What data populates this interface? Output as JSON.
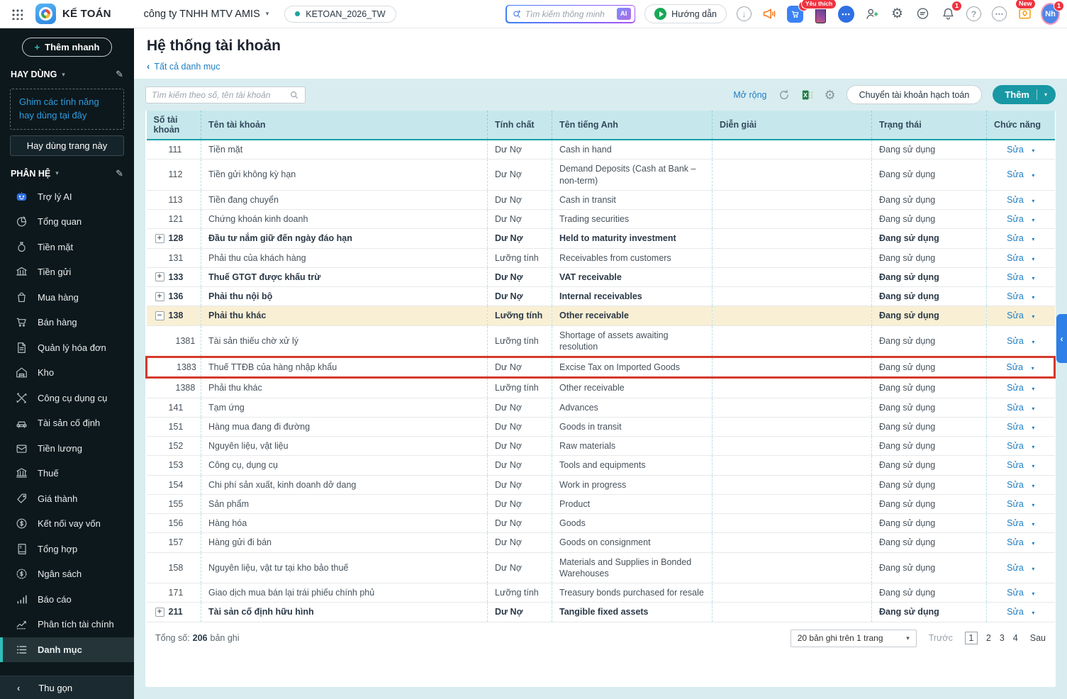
{
  "topbar": {
    "app_name": "KẾ TOÁN",
    "company": "công ty TNHH MTV AMIS",
    "workspace": "KETOAN_2026_TW",
    "search_placeholder": "Tìm kiếm thông minh",
    "ai_badge": "AI",
    "guide_label": "Hướng dẫn",
    "cart_badge": "1",
    "favorite_badge": "Yêu thích",
    "bell_badge": "1",
    "new_badge": "New",
    "avatar_initials": "Nh",
    "avatar_badge": "1"
  },
  "icons": {
    "caret_down": "▾",
    "chevron_left": "‹",
    "pencil": "✎",
    "gear": "⚙",
    "download_arrow": "↓",
    "question": "?",
    "ellipsis": "⋯",
    "chat_dots": "•••",
    "plus": "+"
  },
  "sidebar": {
    "quick_add_label": "Thêm nhanh",
    "frequent_header": "HAY DÙNG",
    "pin_hint": "Ghim các tính năng hay dùng tại đây",
    "frequent_page_button": "Hay dùng trang này",
    "modules_header": "PHÂN HỆ",
    "items": [
      {
        "label": "Trợ lý AI",
        "icon": "robot",
        "selected": false
      },
      {
        "label": "Tổng quan",
        "icon": "pie",
        "selected": false
      },
      {
        "label": "Tiền mặt",
        "icon": "moneybag",
        "selected": false
      },
      {
        "label": "Tiền gửi",
        "icon": "bank",
        "selected": false
      },
      {
        "label": "Mua hàng",
        "icon": "bag",
        "selected": false
      },
      {
        "label": "Bán hàng",
        "icon": "cart",
        "selected": false
      },
      {
        "label": "Quản lý hóa đơn",
        "icon": "invoice",
        "selected": false
      },
      {
        "label": "Kho",
        "icon": "warehouse",
        "selected": false
      },
      {
        "label": "Công cụ dụng cụ",
        "icon": "tools",
        "selected": false
      },
      {
        "label": "Tài sản cố định",
        "icon": "car",
        "selected": false
      },
      {
        "label": "Tiền lương",
        "icon": "salary",
        "selected": false
      },
      {
        "label": "Thuế",
        "icon": "temple",
        "selected": false
      },
      {
        "label": "Giá thành",
        "icon": "tag",
        "selected": false
      },
      {
        "label": "Kết nối vay vốn",
        "icon": "coin",
        "selected": false
      },
      {
        "label": "Tổng hợp",
        "icon": "ledger",
        "selected": false
      },
      {
        "label": "Ngân sách",
        "icon": "budget",
        "selected": false
      },
      {
        "label": "Báo cáo",
        "icon": "bars",
        "selected": false
      },
      {
        "label": "Phân tích tài chính",
        "icon": "trend",
        "selected": false
      },
      {
        "label": "Danh mục",
        "icon": "list",
        "selected": true
      }
    ],
    "collapse_label": "Thu gọn"
  },
  "page": {
    "title": "Hệ thống tài khoản",
    "breadcrumb": "Tất cả danh mục"
  },
  "toolbar": {
    "search_placeholder": "Tìm kiếm theo số, tên tài khoản",
    "expand_link": "Mở rộng",
    "transfer_button": "Chuyển tài khoản hạch toán",
    "add_button": "Thêm"
  },
  "table": {
    "columns": [
      "Số tài khoản",
      "Tên tài khoản",
      "Tính chất",
      "Tên tiếng Anh",
      "Diễn giải",
      "Trạng thái",
      "Chức năng"
    ],
    "edit_label": "Sửa",
    "rows": [
      {
        "expand": "",
        "account": "111",
        "name": "Tiền mặt",
        "nature": "Dư Nợ",
        "english": "Cash in hand",
        "description": "",
        "status": "Đang sử dụng",
        "bold": false,
        "highlight": false,
        "child": false,
        "annotated": false
      },
      {
        "expand": "",
        "account": "112",
        "name": "Tiền gửi không kỳ hạn",
        "nature": "Dư Nợ",
        "english": "Demand Deposits (Cash at Bank – non-term)",
        "description": "",
        "status": "Đang sử dụng",
        "bold": false,
        "highlight": false,
        "child": false,
        "annotated": false
      },
      {
        "expand": "",
        "account": "113",
        "name": "Tiền đang chuyển",
        "nature": "Dư Nợ",
        "english": "Cash in transit",
        "description": "",
        "status": "Đang sử dụng",
        "bold": false,
        "highlight": false,
        "child": false,
        "annotated": false
      },
      {
        "expand": "",
        "account": "121",
        "name": "Chứng khoán kinh doanh",
        "nature": "Dư Nợ",
        "english": "Trading securities",
        "description": "",
        "status": "Đang sử dụng",
        "bold": false,
        "highlight": false,
        "child": false,
        "annotated": false
      },
      {
        "expand": "plus",
        "account": "128",
        "name": "Đầu tư nắm giữ đến ngày đáo hạn",
        "nature": "Dư Nợ",
        "english": "Held to maturity investment",
        "description": "",
        "status": "Đang sử dụng",
        "bold": true,
        "highlight": false,
        "child": false,
        "annotated": false
      },
      {
        "expand": "",
        "account": "131",
        "name": "Phải thu của khách hàng",
        "nature": "Lưỡng tính",
        "english": "Receivables from customers",
        "description": "",
        "status": "Đang sử dụng",
        "bold": false,
        "highlight": false,
        "child": false,
        "annotated": false
      },
      {
        "expand": "plus",
        "account": "133",
        "name": "Thuế GTGT được khấu trừ",
        "nature": "Dư Nợ",
        "english": "VAT receivable",
        "description": "",
        "status": "Đang sử dụng",
        "bold": true,
        "highlight": false,
        "child": false,
        "annotated": false
      },
      {
        "expand": "plus",
        "account": "136",
        "name": "Phải thu nội bộ",
        "nature": "Dư Nợ",
        "english": "Internal receivables",
        "description": "",
        "status": "Đang sử dụng",
        "bold": true,
        "highlight": false,
        "child": false,
        "annotated": false
      },
      {
        "expand": "minus",
        "account": "138",
        "name": "Phải thu khác",
        "nature": "Lưỡng tính",
        "english": "Other receivable",
        "description": "",
        "status": "Đang sử dụng",
        "bold": true,
        "highlight": true,
        "child": false,
        "annotated": false
      },
      {
        "expand": "",
        "account": "1381",
        "name": "Tài sản thiếu chờ xử lý",
        "nature": "Lưỡng tính",
        "english": "Shortage of assets awaiting resolution",
        "description": "",
        "status": "Đang sử dụng",
        "bold": false,
        "highlight": false,
        "child": true,
        "annotated": false
      },
      {
        "expand": "",
        "account": "1383",
        "name": "Thuế TTĐB của hàng nhập khẩu",
        "nature": "Dư Nợ",
        "english": "Excise Tax on Imported Goods",
        "description": "",
        "status": "Đang sử dụng",
        "bold": false,
        "highlight": false,
        "child": true,
        "annotated": true
      },
      {
        "expand": "",
        "account": "1388",
        "name": "Phải thu khác",
        "nature": "Lưỡng tính",
        "english": "Other receivable",
        "description": "",
        "status": "Đang sử dụng",
        "bold": false,
        "highlight": false,
        "child": true,
        "annotated": false
      },
      {
        "expand": "",
        "account": "141",
        "name": "Tạm ứng",
        "nature": "Dư Nợ",
        "english": "Advances",
        "description": "",
        "status": "Đang sử dụng",
        "bold": false,
        "highlight": false,
        "child": false,
        "annotated": false
      },
      {
        "expand": "",
        "account": "151",
        "name": "Hàng mua đang đi đường",
        "nature": "Dư Nợ",
        "english": "Goods in transit",
        "description": "",
        "status": "Đang sử dụng",
        "bold": false,
        "highlight": false,
        "child": false,
        "annotated": false
      },
      {
        "expand": "",
        "account": "152",
        "name": "Nguyên liệu, vật liệu",
        "nature": "Dư Nợ",
        "english": "Raw materials",
        "description": "",
        "status": "Đang sử dụng",
        "bold": false,
        "highlight": false,
        "child": false,
        "annotated": false
      },
      {
        "expand": "",
        "account": "153",
        "name": "Công cụ, dụng cụ",
        "nature": "Dư Nợ",
        "english": "Tools and equipments",
        "description": "",
        "status": "Đang sử dụng",
        "bold": false,
        "highlight": false,
        "child": false,
        "annotated": false
      },
      {
        "expand": "",
        "account": "154",
        "name": "Chi phí sản xuất, kinh doanh dở dang",
        "nature": "Dư Nợ",
        "english": "Work in progress",
        "description": "",
        "status": "Đang sử dụng",
        "bold": false,
        "highlight": false,
        "child": false,
        "annotated": false
      },
      {
        "expand": "",
        "account": "155",
        "name": "Sản phẩm",
        "nature": "Dư Nợ",
        "english": "Product",
        "description": "",
        "status": "Đang sử dụng",
        "bold": false,
        "highlight": false,
        "child": false,
        "annotated": false
      },
      {
        "expand": "",
        "account": "156",
        "name": "Hàng hóa",
        "nature": "Dư Nợ",
        "english": "Goods",
        "description": "",
        "status": "Đang sử dụng",
        "bold": false,
        "highlight": false,
        "child": false,
        "annotated": false
      },
      {
        "expand": "",
        "account": "157",
        "name": "Hàng gửi đi bán",
        "nature": "Dư Nợ",
        "english": "Goods on consignment",
        "description": "",
        "status": "Đang sử dụng",
        "bold": false,
        "highlight": false,
        "child": false,
        "annotated": false
      },
      {
        "expand": "",
        "account": "158",
        "name": "Nguyên liệu, vật tư tại kho bảo thuế",
        "nature": "Dư Nợ",
        "english": "Materials and Supplies in Bonded Warehouses",
        "description": "",
        "status": "Đang sử dụng",
        "bold": false,
        "highlight": false,
        "child": false,
        "annotated": false
      },
      {
        "expand": "",
        "account": "171",
        "name": "Giao dịch mua bán lại trái phiếu chính phủ",
        "nature": "Lưỡng tính",
        "english": "Treasury bonds purchased for resale",
        "description": "",
        "status": "Đang sử dụng",
        "bold": false,
        "highlight": false,
        "child": false,
        "annotated": false
      },
      {
        "expand": "plus",
        "account": "211",
        "name": "Tài sản cố định hữu hình",
        "nature": "Dư Nợ",
        "english": "Tangible fixed assets",
        "description": "",
        "status": "Đang sử dụng",
        "bold": true,
        "highlight": false,
        "child": false,
        "annotated": false
      }
    ]
  },
  "footer": {
    "total_prefix": "Tổng số:",
    "total_count": "206",
    "total_suffix": "bản ghi",
    "page_size": "20 bản ghi trên 1 trang",
    "prev_label": "Trước",
    "pages": [
      "1",
      "2",
      "3",
      "4"
    ],
    "current_page": "1",
    "next_label": "Sau"
  }
}
